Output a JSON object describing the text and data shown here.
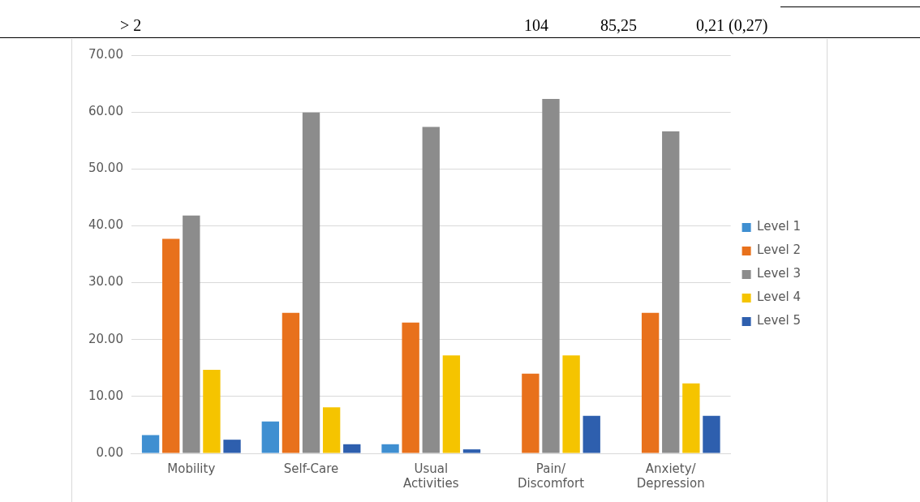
{
  "chart_data": {
    "type": "bar",
    "categories": [
      "Mobility",
      "Self-Care",
      "Usual Activities",
      "Pain/Discomfort",
      "Anxiety/Depression"
    ],
    "series": [
      {
        "name": "Level 1",
        "color": "#3f8fd1",
        "values": [
          3.2,
          5.6,
          1.6,
          0,
          0
        ]
      },
      {
        "name": "Level 2",
        "color": "#e8711c",
        "values": [
          37.7,
          24.7,
          23.0,
          14.0,
          24.7
        ]
      },
      {
        "name": "Level 3",
        "color": "#8c8c8c",
        "values": [
          41.8,
          59.9,
          57.4,
          62.3,
          56.6
        ]
      },
      {
        "name": "Level 4",
        "color": "#f5c400",
        "values": [
          14.7,
          8.1,
          17.2,
          17.2,
          12.3
        ]
      },
      {
        "name": "Level 5",
        "color": "#2e5fae",
        "values": [
          2.4,
          1.6,
          0.7,
          6.6,
          6.6
        ]
      }
    ],
    "ylim": [
      0,
      70
    ],
    "yticks": [
      {
        "value": 0,
        "label": "0.00"
      },
      {
        "value": 10,
        "label": "10.00"
      },
      {
        "value": 20,
        "label": "20.00"
      },
      {
        "value": 30,
        "label": "30.00"
      },
      {
        "value": 40,
        "label": "40.00"
      },
      {
        "value": 50,
        "label": "50.00"
      },
      {
        "value": 60,
        "label": "60.00"
      },
      {
        "value": 70,
        "label": "70.00"
      }
    ],
    "grid": "y",
    "legend": "right",
    "annotations": [
      "> 2",
      "104",
      "85,25",
      "0,21 (0,27)"
    ]
  }
}
